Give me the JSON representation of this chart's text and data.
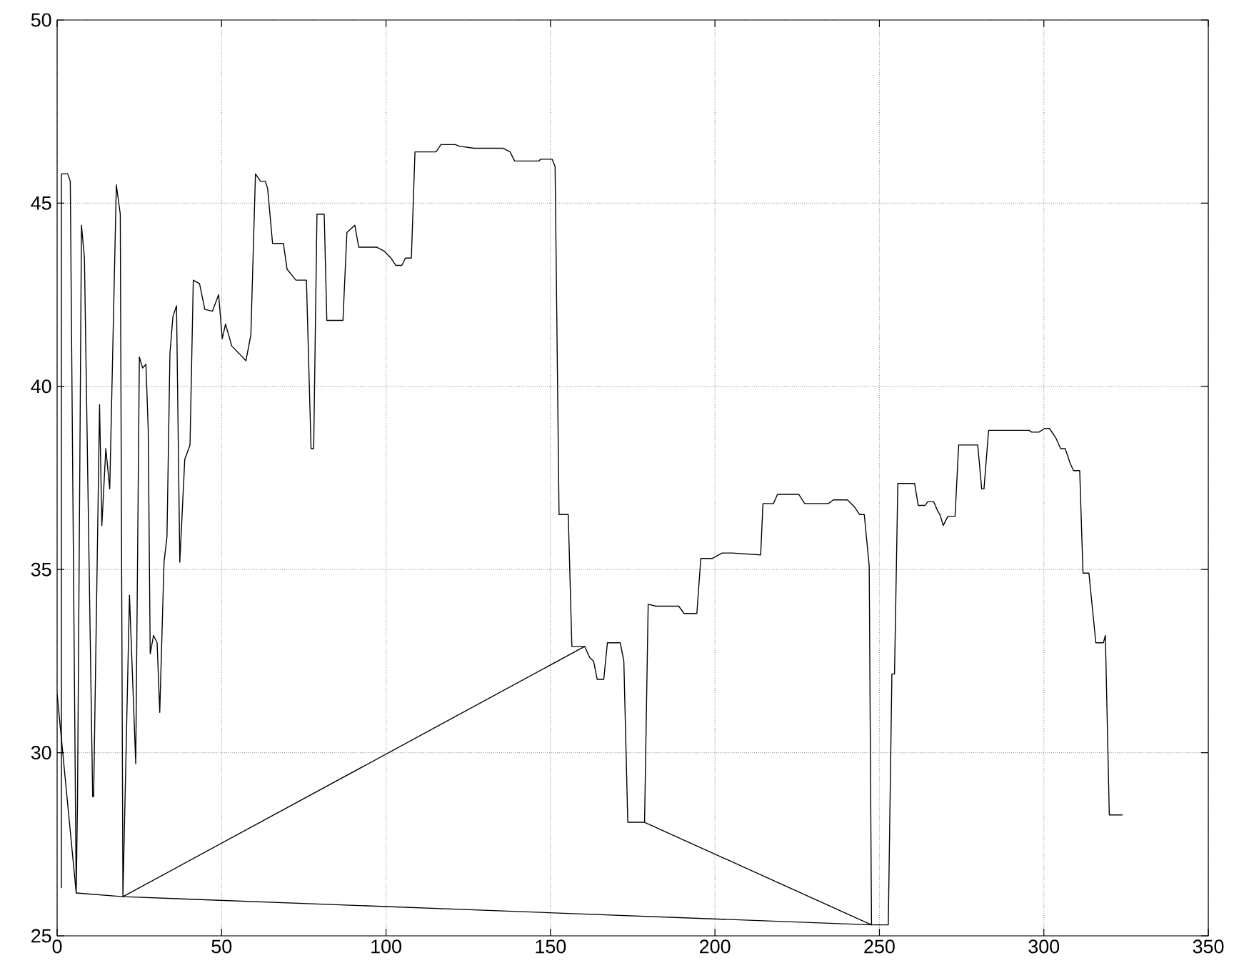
{
  "chart_data": {
    "type": "line",
    "line_style": "solid",
    "grid": true,
    "xlim": [
      0,
      350
    ],
    "ylim": [
      25,
      50
    ],
    "xticks": [
      0,
      50,
      100,
      150,
      200,
      250,
      300,
      350
    ],
    "yticks": [
      25,
      30,
      35,
      40,
      45,
      50
    ],
    "series": [
      {
        "color": "#000000",
        "x": [
          0,
          5.8
        ],
        "values": [
          31.6,
          26.17
        ]
      },
      {
        "color": "#000000",
        "x": [
          1.3,
          1.3,
          3.2,
          4.0,
          5.8,
          6.2,
          7.4,
          8.3,
          10.8,
          11.1,
          12.9,
          13.6,
          14.8,
          16.0,
          18.0,
          19.2,
          20.0,
          22.0,
          23.9,
          25.0,
          26.0,
          27.0,
          27.7,
          28.3,
          29.3,
          30.4,
          31.2,
          32.5,
          33.4,
          34.3,
          35.2,
          36.3,
          37.3,
          38.8,
          40.4,
          41.4,
          43.3,
          44.9,
          47.2,
          49.1,
          50.2,
          51.2,
          53.1,
          55.3,
          57.4,
          58.9,
          60.3,
          61.8,
          63.3,
          64.0,
          65.5,
          68.8,
          69.9,
          72.6,
          75.8,
          77.2,
          78.0,
          79.0,
          81.2,
          82.0,
          86.9,
          88.1,
          90.5,
          91.7,
          97.1,
          99.3,
          101.5,
          103.0,
          104.8,
          105.9,
          107.7,
          108.8,
          115.2,
          116.7,
          121.0,
          122.5,
          126.8,
          135.5,
          137.7,
          139.1,
          146.4,
          147.1,
          150.5,
          151.4,
          152.6,
          155.4,
          156.5,
          160.4,
          161.9,
          163.1,
          164.2,
          166.2,
          167.3,
          171.2,
          172.3,
          173.5,
          178.6,
          179.7,
          182.1,
          189.0,
          190.6,
          194.5,
          195.7,
          199.1,
          202.2,
          205.3,
          213.9,
          214.6,
          217.8,
          219.0,
          225.5,
          227.3,
          234.5,
          236.0,
          240.3,
          242.5,
          244.0,
          245.4,
          246.9,
          247.6,
          249.1,
          252.7,
          253.8,
          254.6,
          255.6,
          260.7,
          261.8,
          263.9,
          264.7,
          266.5,
          267.7,
          268.4,
          269.4,
          270.8,
          273.0,
          274.1,
          279.9,
          281.1,
          281.8,
          283.2,
          295.5,
          296.3,
          298.5,
          300.3,
          301.7,
          303.6,
          305.1,
          306.5,
          308.0,
          309.0,
          310.9,
          311.9,
          313.7,
          315.8,
          318.1,
          318.7,
          319.9,
          323.9
        ],
        "values": [
          26.3,
          45.8,
          45.8,
          45.6,
          26.17,
          28.7,
          44.4,
          43.5,
          28.8,
          28.8,
          39.5,
          36.2,
          38.3,
          37.2,
          45.5,
          44.7,
          26.07,
          34.3,
          29.7,
          40.8,
          40.5,
          40.6,
          38.8,
          32.7,
          33.2,
          33.0,
          31.1,
          35.2,
          35.9,
          40.9,
          41.9,
          42.2,
          35.2,
          38.0,
          38.4,
          42.9,
          42.8,
          42.1,
          42.05,
          42.5,
          41.3,
          41.7,
          41.1,
          40.9,
          40.7,
          41.4,
          45.8,
          45.6,
          45.6,
          45.4,
          43.9,
          43.9,
          43.2,
          42.9,
          42.9,
          38.3,
          38.3,
          44.7,
          44.7,
          41.8,
          41.8,
          44.2,
          44.4,
          43.8,
          43.8,
          43.7,
          43.5,
          43.3,
          43.3,
          43.5,
          43.5,
          46.4,
          46.4,
          46.6,
          46.6,
          46.55,
          46.5,
          46.5,
          46.4,
          46.15,
          46.15,
          46.2,
          46.2,
          46.0,
          36.5,
          36.5,
          32.9,
          32.9,
          32.6,
          32.5,
          32.0,
          32.0,
          33.0,
          33.0,
          32.5,
          28.1,
          28.1,
          34.05,
          34.0,
          34.0,
          33.8,
          33.8,
          35.3,
          35.3,
          35.45,
          35.45,
          35.4,
          36.8,
          36.8,
          37.05,
          37.05,
          36.8,
          36.8,
          36.9,
          36.9,
          36.7,
          36.5,
          36.5,
          35.1,
          25.3,
          25.3,
          25.3,
          32.15,
          32.15,
          37.35,
          37.35,
          36.75,
          36.75,
          36.85,
          36.85,
          36.6,
          36.5,
          36.2,
          36.45,
          36.45,
          38.4,
          38.4,
          37.2,
          37.2,
          38.8,
          38.8,
          38.75,
          38.75,
          38.85,
          38.85,
          38.6,
          38.3,
          38.3,
          37.9,
          37.7,
          37.7,
          34.9,
          34.9,
          33.0,
          33.0,
          33.2,
          28.3,
          28.3
        ]
      },
      {
        "color": "#000000",
        "x": [
          5.8,
          20.0,
          247.6
        ],
        "values": [
          26.17,
          26.07,
          25.3
        ]
      },
      {
        "color": "#000000",
        "x": [
          20.0,
          160.4
        ],
        "values": [
          26.07,
          32.9
        ]
      },
      {
        "color": "#000000",
        "x": [
          178.6,
          247.6
        ],
        "values": [
          28.1,
          25.3
        ]
      }
    ]
  }
}
